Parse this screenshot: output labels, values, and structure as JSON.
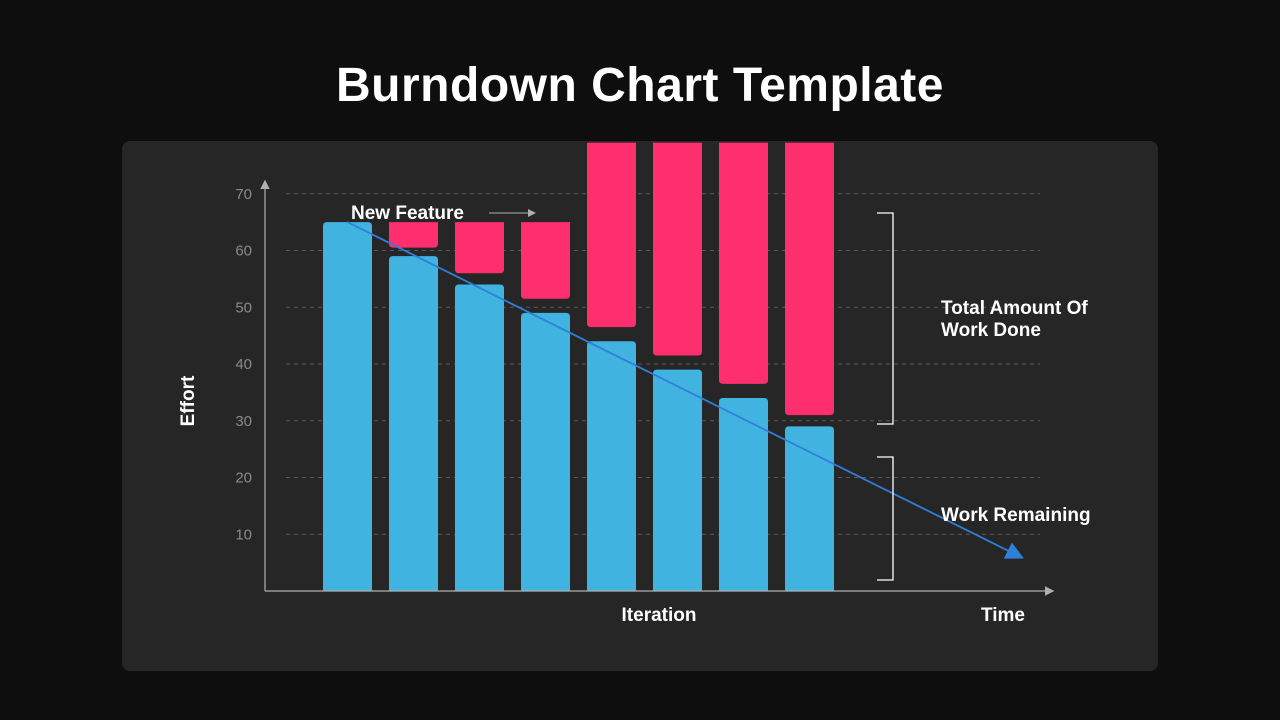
{
  "title": "Burndown Chart Template",
  "colors": {
    "work_remaining": "#40b3e0",
    "new_feature": "#ff2e6e",
    "trend": "#2f7fd9",
    "panel": "#262626",
    "background": "#0e0e0e"
  },
  "chart_data": {
    "type": "bar",
    "ylabel": "Effort",
    "xlabel": "Iteration",
    "x_axis_end_label": "Time",
    "ylim": [
      0,
      80
    ],
    "yticks": [
      10,
      20,
      30,
      40,
      50,
      60,
      70
    ],
    "grid": true,
    "categories": [
      "",
      "",
      "",
      "",
      "",
      "",
      "",
      ""
    ],
    "work_remaining": [
      65,
      59,
      54,
      49,
      44,
      39,
      34,
      29
    ],
    "new_feature_ranges": [
      null,
      [
        60.5,
        65
      ],
      [
        56,
        65
      ],
      [
        51.5,
        65
      ],
      [
        46.5,
        79
      ],
      [
        41.5,
        79
      ],
      [
        36.5,
        79
      ],
      [
        31,
        79
      ]
    ],
    "trend_line": {
      "from": [
        1,
        65
      ],
      "to": [
        11.2,
        6
      ]
    },
    "annotations": {
      "new_feature": "New Feature",
      "total_work_done_line1": "Total Amount Of",
      "total_work_done_line2": "Work Done",
      "work_remaining": "Work Remaining"
    }
  }
}
